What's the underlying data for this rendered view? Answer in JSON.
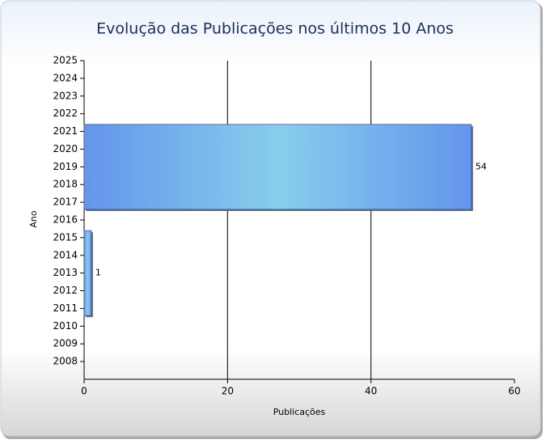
{
  "chart_data": {
    "type": "hbar",
    "title": "Evolução das Publicações nos últimos 10 Anos",
    "x_label": "Publicações",
    "y_label": "Ano",
    "y": [
      2013,
      2019
    ],
    "values": [
      1,
      54
    ],
    "color": "#6495ed",
    "highlight_color": "#87ceeb",
    "xlim": [
      0,
      60
    ],
    "xticks": [
      0,
      20,
      40,
      60
    ],
    "ylim": [
      2007,
      2025
    ],
    "yticks": [
      2008,
      2009,
      2010,
      2011,
      2012,
      2013,
      2014,
      2015,
      2016,
      2017,
      2018,
      2019,
      2020,
      2021,
      2022,
      2023,
      2024,
      2025
    ],
    "grid": true
  }
}
